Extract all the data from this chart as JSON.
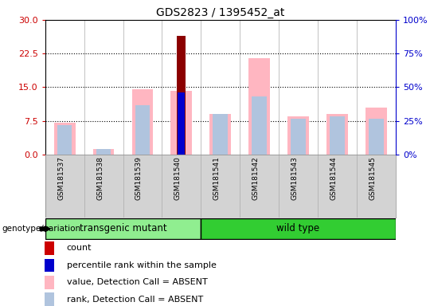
{
  "title": "GDS2823 / 1395452_at",
  "samples": [
    "GSM181537",
    "GSM181538",
    "GSM181539",
    "GSM181540",
    "GSM181541",
    "GSM181542",
    "GSM181543",
    "GSM181544",
    "GSM181545"
  ],
  "count_values": [
    0,
    0,
    0,
    26.5,
    0,
    0,
    0,
    0,
    0
  ],
  "percentile_values": [
    0,
    0,
    0,
    13.8,
    0,
    0,
    0,
    0,
    0
  ],
  "value_absent": [
    7.0,
    1.2,
    14.5,
    14.2,
    9.0,
    21.5,
    8.5,
    9.0,
    10.5
  ],
  "rank_absent": [
    6.5,
    1.2,
    11.0,
    0,
    9.0,
    13.0,
    8.0,
    8.5,
    8.0
  ],
  "ylim_left": [
    0,
    30
  ],
  "ylim_right": [
    0,
    100
  ],
  "yticks_left": [
    0,
    7.5,
    15,
    22.5,
    30
  ],
  "yticks_right": [
    0,
    25,
    50,
    75,
    100
  ],
  "color_left_axis": "#cc0000",
  "color_right_axis": "#0000cc",
  "color_count": "#8b0000",
  "color_percentile": "#0000cd",
  "color_value_absent": "#ffb6c1",
  "color_rank_absent": "#b0c4de",
  "bg_samples": "#d3d3d3",
  "bg_plot": "#ffffff",
  "tg_group_color": "#90ee90",
  "wt_group_color": "#32cd32",
  "tg_indices": [
    0,
    1,
    2,
    3
  ],
  "wt_indices": [
    4,
    5,
    6,
    7,
    8
  ],
  "legend_items": [
    {
      "label": "count",
      "color": "#cc0000"
    },
    {
      "label": "percentile rank within the sample",
      "color": "#0000cd"
    },
    {
      "label": "value, Detection Call = ABSENT",
      "color": "#ffb6c1"
    },
    {
      "label": "rank, Detection Call = ABSENT",
      "color": "#b0c4de"
    }
  ],
  "genotype_label": "genotype/variation"
}
